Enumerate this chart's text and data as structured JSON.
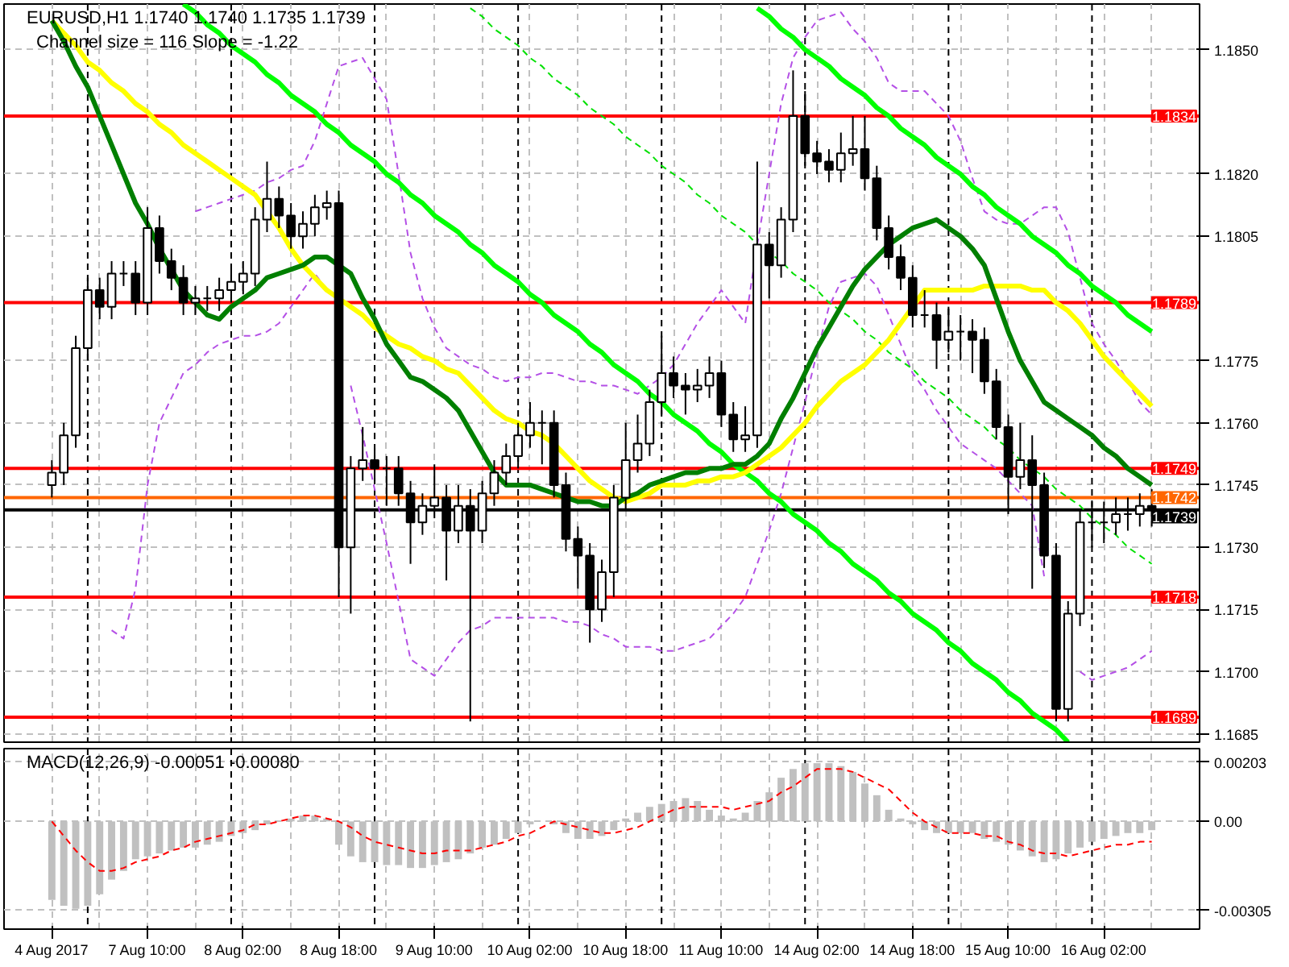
{
  "chart_data": [
    {
      "type": "candlestick",
      "title": "EURUSD,H1  1.1740 1.1740 1.1735 1.1739",
      "subtitle": "Channel size = 116 Slope = -1.22",
      "categories": [
        null,
        null,
        null,
        null,
        null,
        null,
        null,
        null,
        null,
        null,
        null,
        null,
        null,
        null,
        null,
        null,
        null,
        null,
        null,
        null,
        null,
        null,
        null,
        null,
        null,
        null,
        null,
        null,
        null,
        null,
        null,
        null,
        null,
        null,
        null,
        null,
        null,
        null,
        null,
        null,
        null,
        null,
        null,
        null,
        null,
        null,
        null,
        null,
        null,
        null,
        null,
        null,
        null,
        null,
        null,
        null,
        null,
        null,
        null,
        null,
        null,
        null,
        null,
        null,
        null,
        null,
        null,
        null,
        null,
        null,
        null,
        null,
        null,
        null,
        null,
        null,
        null,
        null,
        null,
        null,
        null,
        null,
        null,
        null,
        null,
        null,
        null,
        null,
        null,
        null,
        null,
        null,
        null
      ],
      "ohlc": [
        [
          1.1745,
          1.1751,
          1.1742,
          1.1748
        ],
        [
          1.1748,
          1.176,
          1.1745,
          1.1757
        ],
        [
          1.1757,
          1.1781,
          1.1754,
          1.1778
        ],
        [
          1.1778,
          1.1795,
          1.1775,
          1.1792
        ],
        [
          1.1792,
          1.1795,
          1.1785,
          1.1788
        ],
        [
          1.1788,
          1.1799,
          1.1785,
          1.1796
        ],
        [
          1.1796,
          1.1799,
          1.1793,
          1.1796
        ],
        [
          1.1796,
          1.1799,
          1.1786,
          1.1789
        ],
        [
          1.1789,
          1.1812,
          1.1786,
          1.1807
        ],
        [
          1.1807,
          1.181,
          1.1796,
          1.1799
        ],
        [
          1.1799,
          1.1802,
          1.1792,
          1.1795
        ],
        [
          1.1795,
          1.1798,
          1.1786,
          1.1789
        ],
        [
          1.1789,
          1.1793,
          1.1786,
          1.179
        ],
        [
          1.179,
          1.1793,
          1.1787,
          1.179
        ],
        [
          1.179,
          1.1795,
          1.1787,
          1.1792
        ],
        [
          1.1792,
          1.1797,
          1.1789,
          1.1794
        ],
        [
          1.1794,
          1.1799,
          1.1791,
          1.1796
        ],
        [
          1.1796,
          1.1812,
          1.1793,
          1.1809
        ],
        [
          1.1809,
          1.1823,
          1.1806,
          1.1814
        ],
        [
          1.1814,
          1.1817,
          1.1807,
          1.181
        ],
        [
          1.181,
          1.1813,
          1.1802,
          1.1805
        ],
        [
          1.1805,
          1.1811,
          1.1802,
          1.1808
        ],
        [
          1.1808,
          1.1815,
          1.1805,
          1.1812
        ],
        [
          1.1812,
          1.1816,
          1.1809,
          1.1813
        ],
        [
          1.1813,
          1.1816,
          1.1718,
          1.173
        ],
        [
          1.173,
          1.1752,
          1.1714,
          1.1749
        ],
        [
          1.1749,
          1.1759,
          1.1746,
          1.1751
        ],
        [
          1.1751,
          1.1754,
          1.1746,
          1.1749
        ],
        [
          1.1749,
          1.1752,
          1.174,
          1.1749
        ],
        [
          1.1749,
          1.1752,
          1.174,
          1.1743
        ],
        [
          1.1743,
          1.1746,
          1.1726,
          1.1736
        ],
        [
          1.1736,
          1.1743,
          1.1733,
          1.174
        ],
        [
          1.174,
          1.175,
          1.1737,
          1.1742
        ],
        [
          1.1742,
          1.1745,
          1.1722,
          1.1734
        ],
        [
          1.1734,
          1.1745,
          1.1731,
          1.174
        ],
        [
          1.174,
          1.1744,
          1.1688,
          1.1734
        ],
        [
          1.1734,
          1.1746,
          1.1731,
          1.1743
        ],
        [
          1.1743,
          1.1751,
          1.174,
          1.1748
        ],
        [
          1.1748,
          1.1755,
          1.1745,
          1.1752
        ],
        [
          1.1752,
          1.176,
          1.1749,
          1.1757
        ],
        [
          1.1757,
          1.1765,
          1.1754,
          1.176
        ],
        [
          1.176,
          1.1763,
          1.175,
          1.176
        ],
        [
          1.176,
          1.1763,
          1.1742,
          1.1745
        ],
        [
          1.1745,
          1.1748,
          1.1729,
          1.1732
        ],
        [
          1.1732,
          1.1735,
          1.172,
          1.1728
        ],
        [
          1.1728,
          1.1731,
          1.1707,
          1.1715
        ],
        [
          1.1715,
          1.1727,
          1.1712,
          1.1724
        ],
        [
          1.1724,
          1.1745,
          1.1718,
          1.1742
        ],
        [
          1.1742,
          1.176,
          1.1739,
          1.1751
        ],
        [
          1.1751,
          1.1762,
          1.1748,
          1.1755
        ],
        [
          1.1755,
          1.1768,
          1.1752,
          1.1765
        ],
        [
          1.1765,
          1.1781,
          1.1762,
          1.1772
        ],
        [
          1.1772,
          1.1776,
          1.1766,
          1.1769
        ],
        [
          1.1769,
          1.1772,
          1.1762,
          1.1768
        ],
        [
          1.1768,
          1.1773,
          1.1765,
          1.1769
        ],
        [
          1.1769,
          1.1776,
          1.1766,
          1.1772
        ],
        [
          1.1772,
          1.1775,
          1.1759,
          1.1762
        ],
        [
          1.1762,
          1.1765,
          1.1753,
          1.1756
        ],
        [
          1.1756,
          1.1764,
          1.1753,
          1.1757
        ],
        [
          1.1757,
          1.1823,
          1.1754,
          1.1803
        ],
        [
          1.1803,
          1.1806,
          1.179,
          1.1798
        ],
        [
          1.1798,
          1.1812,
          1.1795,
          1.1809
        ],
        [
          1.1809,
          1.1845,
          1.1806,
          1.1834
        ],
        [
          1.1834,
          1.184,
          1.1822,
          1.1825
        ],
        [
          1.1825,
          1.1828,
          1.182,
          1.1823
        ],
        [
          1.1823,
          1.1826,
          1.1818,
          1.1821
        ],
        [
          1.1821,
          1.183,
          1.1818,
          1.1825
        ],
        [
          1.1825,
          1.1834,
          1.1822,
          1.1826
        ],
        [
          1.1826,
          1.1834,
          1.1816,
          1.1819
        ],
        [
          1.1819,
          1.1822,
          1.1804,
          1.1807
        ],
        [
          1.1807,
          1.181,
          1.1797,
          1.18
        ],
        [
          1.18,
          1.1803,
          1.1792,
          1.1795
        ],
        [
          1.1795,
          1.1798,
          1.1783,
          1.1786
        ],
        [
          1.1786,
          1.1792,
          1.1783,
          1.1786
        ],
        [
          1.1786,
          1.1789,
          1.1773,
          1.178
        ],
        [
          1.178,
          1.1788,
          1.1777,
          1.1782
        ],
        [
          1.1782,
          1.1786,
          1.1775,
          1.1782
        ],
        [
          1.1782,
          1.1785,
          1.1772,
          1.178
        ],
        [
          1.178,
          1.1783,
          1.1767,
          1.177
        ],
        [
          1.177,
          1.1773,
          1.1756,
          1.1759
        ],
        [
          1.1759,
          1.1762,
          1.1738,
          1.1747
        ],
        [
          1.1747,
          1.176,
          1.1744,
          1.1751
        ],
        [
          1.1751,
          1.1757,
          1.172,
          1.1745
        ],
        [
          1.1745,
          1.1748,
          1.1725,
          1.1728
        ],
        [
          1.1728,
          1.1731,
          1.1688,
          1.1691
        ],
        [
          1.1691,
          1.1717,
          1.1688,
          1.1714
        ],
        [
          1.1714,
          1.1739,
          1.1711,
          1.1736
        ],
        [
          1.1736,
          1.1741,
          1.173,
          1.1736
        ],
        [
          1.1736,
          1.1741,
          1.1731,
          1.1736
        ],
        [
          1.1736,
          1.1742,
          1.1733,
          1.1738
        ],
        [
          1.1738,
          1.1742,
          1.1734,
          1.1738
        ],
        [
          1.1738,
          1.1743,
          1.1735,
          1.174
        ],
        [
          1.174,
          1.1744,
          1.1735,
          1.1739
        ]
      ],
      "series": [
        {
          "type": "line",
          "color": "#b450e6",
          "line_style": "dashed",
          "values": [
            null,
            null,
            null,
            null,
            null,
            null,
            null,
            null,
            null,
            null,
            null,
            null,
            1.1811,
            1.1812,
            1.1813,
            1.1814,
            1.1815,
            1.1816,
            1.1818,
            1.1819,
            1.1821,
            1.1822,
            1.1828,
            1.1837,
            1.1846,
            1.1847,
            1.1848,
            1.1843,
            1.1838,
            1.182,
            1.1801,
            1.179,
            1.1783,
            1.1778,
            1.1776,
            1.1774,
            1.1773,
            1.1771,
            1.177,
            1.1771,
            1.1771,
            1.1772,
            1.1772,
            1.1771,
            1.177,
            1.177,
            1.1769,
            1.1769,
            1.1768,
            1.1767,
            1.1769,
            1.1771,
            1.1774,
            1.1779,
            1.1784,
            1.1788,
            1.1792,
            1.1788,
            1.1784,
            1.1803,
            1.182,
            1.1837,
            1.1848,
            1.1853,
            1.1857,
            1.1858,
            1.1859,
            1.1855,
            1.1852,
            1.1848,
            1.1842,
            1.184,
            1.184,
            1.184,
            1.1837,
            1.1834,
            1.1828,
            1.1819,
            1.1811,
            1.1809,
            1.1808,
            1.1808,
            1.181,
            1.1812,
            1.1812,
            1.1806,
            1.1795,
            1.1784,
            1.1779,
            1.1775,
            1.177,
            1.1765,
            1.1762
          ]
        },
        {
          "type": "line",
          "color": "#b450e6",
          "line_style": "dashed",
          "values": [
            null,
            null,
            null,
            null,
            null,
            1.171,
            1.1708,
            1.172,
            1.1745,
            1.176,
            1.1766,
            1.1772,
            1.1774,
            1.1777,
            1.1779,
            1.178,
            1.1781,
            1.1781,
            1.1782,
            1.1784,
            1.1788,
            1.1792,
            1.1796,
            1.1792,
            null,
            1.1769,
            1.1757,
            1.1744,
            1.1731,
            1.1717,
            1.1703,
            1.1701,
            1.1699,
            1.1703,
            1.1707,
            1.171,
            1.1711,
            1.1713,
            1.1713,
            1.1713,
            1.1713,
            1.1713,
            1.1713,
            1.1712,
            1.1712,
            1.1711,
            1.1709,
            1.1708,
            1.1706,
            1.1706,
            1.1706,
            1.1705,
            1.1705,
            1.1706,
            1.1707,
            1.1708,
            1.1711,
            1.1714,
            1.1718,
            1.1726,
            1.1734,
            1.1743,
            1.1754,
            1.1765,
            1.1777,
            1.1788,
            1.1794,
            1.1795,
            1.1796,
            1.1793,
            1.1786,
            1.1779,
            1.1772,
            1.1768,
            1.1763,
            1.1759,
            1.1755,
            1.1753,
            1.1751,
            1.1749,
            1.1746,
            1.1743,
            1.174,
            1.1723,
            null,
            null,
            1.17,
            1.1698,
            1.1699,
            1.17,
            1.1701,
            1.1703,
            1.1705
          ]
        },
        {
          "type": "line",
          "color": "#00ff00",
          "values": [
            null,
            null,
            null,
            null,
            null,
            null,
            null,
            null,
            null,
            null,
            null,
            1.1861,
            1.1859,
            1.1856,
            1.1854,
            1.1851,
            1.1849,
            1.1847,
            1.1844,
            1.1842,
            1.1839,
            1.1837,
            1.1835,
            1.1832,
            1.183,
            1.1827,
            1.1825,
            1.1823,
            1.182,
            1.1818,
            1.1815,
            1.1813,
            1.181,
            1.1808,
            1.1806,
            1.1803,
            1.1801,
            1.1798,
            1.1796,
            1.1794,
            1.1791,
            1.1789,
            1.1786,
            1.1784,
            1.1782,
            1.1779,
            1.1777,
            1.1774,
            1.1772,
            1.177,
            1.1767,
            1.1765,
            1.1762,
            1.176,
            1.1758,
            1.1755,
            1.1753,
            1.175,
            1.1748,
            1.1746,
            1.1743,
            1.1741,
            1.1738,
            1.1736,
            1.1734,
            1.1731,
            1.1729,
            1.1726,
            1.1724,
            1.1722,
            1.1719,
            1.1717,
            1.1714,
            1.1712,
            1.171,
            1.1707,
            1.1705,
            1.1702,
            1.17,
            1.1698,
            1.1695,
            1.1693,
            1.169,
            1.1688,
            1.1686,
            1.1683,
            null,
            null,
            null,
            null,
            null,
            null,
            null
          ]
        },
        {
          "type": "line",
          "color": "#00ff00",
          "values": [
            null,
            null,
            null,
            null,
            null,
            null,
            null,
            null,
            null,
            null,
            null,
            null,
            null,
            null,
            null,
            null,
            null,
            null,
            null,
            null,
            null,
            null,
            null,
            null,
            null,
            null,
            null,
            null,
            null,
            null,
            null,
            null,
            null,
            null,
            null,
            null,
            null,
            null,
            null,
            null,
            null,
            null,
            null,
            null,
            null,
            null,
            null,
            null,
            null,
            null,
            null,
            null,
            null,
            null,
            null,
            null,
            null,
            null,
            null,
            1.186,
            1.1858,
            1.1855,
            1.1853,
            1.185,
            1.1848,
            1.1846,
            1.1843,
            1.1841,
            1.1839,
            1.1836,
            1.1834,
            1.1831,
            1.1829,
            1.1827,
            1.1824,
            1.1822,
            1.182,
            1.1817,
            1.1815,
            1.1812,
            1.181,
            1.1808,
            1.1805,
            1.1803,
            1.1801,
            1.1798,
            1.1796,
            1.1793,
            1.1791,
            1.1789,
            1.1786,
            1.1784,
            1.1782
          ]
        },
        {
          "type": "line",
          "color": "#00e000",
          "line_style": "dashed",
          "values": [
            null,
            null,
            null,
            null,
            null,
            null,
            null,
            null,
            null,
            null,
            null,
            null,
            null,
            null,
            null,
            null,
            null,
            null,
            null,
            null,
            null,
            null,
            null,
            null,
            null,
            null,
            null,
            null,
            null,
            null,
            null,
            null,
            null,
            null,
            null,
            1.186,
            1.1858,
            1.1855,
            1.1853,
            1.1851,
            1.1848,
            1.1846,
            1.1843,
            1.1841,
            1.1839,
            1.1836,
            1.1834,
            1.1832,
            1.1829,
            1.1827,
            1.1825,
            1.1822,
            1.182,
            1.1818,
            1.1815,
            1.1813,
            1.181,
            1.1808,
            1.1806,
            1.1803,
            1.1801,
            1.1799,
            1.1796,
            1.1794,
            1.1792,
            1.1789,
            1.1787,
            1.1785,
            1.1782,
            1.178,
            1.1777,
            1.1775,
            1.1773,
            1.177,
            1.1768,
            1.1766,
            1.1763,
            1.1761,
            1.1759,
            1.1756,
            1.1754,
            1.1751,
            1.1749,
            1.1747,
            1.1744,
            1.1742,
            1.174,
            1.1737,
            1.1735,
            1.1733,
            1.173,
            1.1728,
            1.1726
          ]
        },
        {
          "type": "line",
          "color": "#ffff00",
          "values": [
            1.1857,
            1.1854,
            1.1851,
            1.1847,
            1.1845,
            1.1842,
            1.184,
            1.1837,
            1.1835,
            1.1832,
            1.183,
            1.1827,
            1.1825,
            1.1823,
            1.1821,
            1.1819,
            1.1817,
            1.1815,
            1.1811,
            1.1807,
            1.1802,
            1.1798,
            1.1795,
            1.1792,
            1.179,
            1.1788,
            1.1786,
            1.1783,
            1.1781,
            1.1779,
            1.1778,
            1.1776,
            1.1775,
            1.1773,
            1.1772,
            1.1769,
            1.1766,
            1.1763,
            1.1761,
            1.176,
            1.1758,
            1.1757,
            1.1755,
            1.1752,
            1.1749,
            1.1746,
            1.1744,
            1.1742,
            1.1741,
            1.1742,
            1.1743,
            1.1745,
            1.1745,
            1.1745,
            1.1746,
            1.1746,
            1.1747,
            1.1747,
            1.1748,
            1.175,
            1.1752,
            1.1754,
            1.1757,
            1.176,
            1.1764,
            1.1767,
            1.177,
            1.1772,
            1.1774,
            1.1777,
            1.178,
            1.1784,
            1.1788,
            1.1792,
            1.1792,
            1.1792,
            1.1792,
            1.1792,
            1.1793,
            1.1793,
            1.1793,
            1.1793,
            1.1792,
            1.1792,
            1.1789,
            1.1787,
            1.1784,
            1.178,
            1.1776,
            1.1773,
            1.177,
            1.1767,
            1.1764
          ]
        },
        {
          "type": "line",
          "color": "#007f00",
          "values": [
            1.1857,
            1.1852,
            1.1846,
            1.1841,
            1.1834,
            1.1827,
            1.182,
            1.1813,
            1.1808,
            1.1802,
            1.1797,
            1.1792,
            1.1789,
            1.1786,
            1.1785,
            1.1788,
            1.179,
            1.1792,
            1.1795,
            1.1796,
            1.1797,
            1.1798,
            1.18,
            1.18,
            1.1798,
            1.1796,
            1.179,
            1.1785,
            1.1779,
            1.1775,
            1.1771,
            1.177,
            1.1768,
            1.1766,
            1.1763,
            1.1758,
            1.1753,
            1.1748,
            1.1745,
            1.1745,
            1.1745,
            1.1744,
            1.1743,
            1.1742,
            1.1741,
            1.1741,
            1.174,
            1.174,
            1.1742,
            1.1743,
            1.1745,
            1.1746,
            1.1747,
            1.1748,
            1.1748,
            1.1749,
            1.1749,
            1.175,
            1.175,
            1.1752,
            1.1755,
            1.1761,
            1.1766,
            1.1772,
            1.1778,
            1.1783,
            1.1788,
            1.1793,
            1.1797,
            1.18,
            1.1803,
            1.1805,
            1.1807,
            1.1808,
            1.1809,
            1.1807,
            1.1805,
            1.1802,
            1.1798,
            1.179,
            1.1782,
            1.1775,
            1.177,
            1.1765,
            1.1763,
            1.1761,
            1.1759,
            1.1757,
            1.1754,
            1.1752,
            1.1749,
            1.1747,
            1.1745
          ]
        }
      ],
      "ylim": [
        1.1683,
        1.1861
      ],
      "yticks": [
        {
          "value": 1.185,
          "label": "1.1850"
        },
        {
          "value": 1.182,
          "label": "1.1820"
        },
        1.1805,
        1.1775,
        {
          "value": 1.176,
          "label": "1.1760"
        },
        1.1745,
        {
          "value": 1.173,
          "label": "1.1730"
        },
        1.1715,
        {
          "value": 1.17,
          "label": "1.1700"
        },
        1.1685
      ],
      "tick_labels": "y",
      "grid": true,
      "ref_lines": [
        {
          "axis": "y",
          "value": 1.1834,
          "label": "1.1834",
          "color": "#ff0000"
        },
        {
          "axis": "y",
          "value": 1.1789,
          "label": "1.1789",
          "color": "#ff0000"
        },
        {
          "axis": "y",
          "value": 1.1749,
          "label": "1.1749",
          "color": "#ff0000"
        },
        {
          "axis": "y",
          "value": 1.1718,
          "label": "1.1718",
          "color": "#ff0000"
        },
        {
          "axis": "y",
          "value": 1.1689,
          "label": "1.1689",
          "color": "#ff0000"
        },
        {
          "axis": "y",
          "value": 1.1742,
          "label": "1.1742",
          "color": "#ff6600"
        },
        {
          "axis": "y",
          "value": 1.1739,
          "label": "1.1739",
          "color": "#000000"
        }
      ]
    },
    {
      "type": "bar",
      "title": "MACD(12,26,9) -0.00051 -0.00080",
      "categories": [
        "4 Aug 2017",
        null,
        null,
        null,
        null,
        null,
        null,
        null,
        "7 Aug 10:00",
        null,
        null,
        null,
        null,
        null,
        null,
        null,
        "8 Aug 02:00",
        null,
        null,
        null,
        null,
        null,
        null,
        null,
        "8 Aug 18:00",
        null,
        null,
        null,
        null,
        null,
        null,
        null,
        "9 Aug 10:00",
        null,
        null,
        null,
        null,
        null,
        null,
        null,
        "10 Aug 02:00",
        null,
        null,
        null,
        null,
        null,
        null,
        null,
        "10 Aug 18:00",
        null,
        null,
        null,
        null,
        null,
        null,
        null,
        "11 Aug 10:00",
        null,
        null,
        null,
        null,
        null,
        null,
        null,
        "14 Aug 02:00",
        null,
        null,
        null,
        null,
        null,
        null,
        null,
        "14 Aug 18:00",
        null,
        null,
        null,
        null,
        null,
        null,
        null,
        "15 Aug 10:00",
        null,
        null,
        null,
        null,
        null,
        null,
        null,
        "16 Aug 02:00",
        null,
        null,
        null,
        null
      ],
      "series": [
        {
          "color": "#c0c0c0",
          "values": [
            -0.0027,
            -0.0029,
            -0.003,
            -0.0029,
            -0.0025,
            -0.002,
            -0.0017,
            -0.0013,
            -0.0012,
            -0.0011,
            -0.001,
            -0.0009,
            -0.0009,
            -0.0008,
            -0.0007,
            -0.0005,
            -0.0004,
            -0.0003,
            -0.0001,
            0.0,
            0.0001,
            0.0002,
            0.0002,
            0.0001,
            -0.0008,
            -0.0012,
            -0.0014,
            -0.0014,
            -0.0015,
            -0.0015,
            -0.0016,
            -0.0016,
            -0.0015,
            -0.0014,
            -0.0013,
            -0.0011,
            -0.0009,
            -0.0008,
            -0.0006,
            -0.0004,
            -0.0001,
            0.0,
            -0.0001,
            -0.0004,
            -0.0006,
            -0.0006,
            -0.0005,
            -0.0003,
            0.0001,
            0.0003,
            0.0005,
            0.0006,
            0.0007,
            0.0008,
            0.0007,
            0.0004,
            0.0002,
            0.0001,
            0.0003,
            0.0007,
            0.001,
            0.0015,
            0.0018,
            0.002,
            0.002,
            0.002,
            0.0019,
            0.0017,
            0.0013,
            0.0009,
            0.0004,
            0.0001,
            -0.0001,
            -0.0003,
            -0.0004,
            -0.0004,
            -0.0004,
            -0.0004,
            -0.0006,
            -0.0007,
            -0.0008,
            -0.001,
            -0.0012,
            -0.0014,
            -0.0013,
            -0.0011,
            -0.0009,
            -0.0007,
            -0.0006,
            -0.0005,
            -0.0004,
            -0.0004,
            -0.0003
          ]
        },
        {
          "type": "line",
          "color": "#ff0000",
          "line_style": "dashed",
          "values": [
            0.0,
            -0.0005,
            -0.001,
            -0.0014,
            -0.0017,
            -0.0017,
            -0.0016,
            -0.0014,
            -0.0013,
            -0.0012,
            -0.001,
            -0.0009,
            -0.0007,
            -0.0006,
            -0.0005,
            -0.0004,
            -0.0003,
            -0.0001,
            -0.0001,
            0.0,
            0.0001,
            0.0002,
            0.0002,
            0.0001,
            0.0,
            -0.0002,
            -0.0005,
            -0.0007,
            -0.0008,
            -0.0009,
            -0.001,
            -0.0011,
            -0.0011,
            -0.001,
            -0.001,
            -0.001,
            -0.0009,
            -0.0008,
            -0.0007,
            -0.0005,
            -0.0004,
            -0.0002,
            0.0,
            -0.0001,
            -0.0002,
            -0.0003,
            -0.0004,
            -0.0004,
            -0.0003,
            -0.0002,
            0.0,
            0.0002,
            0.0004,
            0.0005,
            0.0005,
            0.0005,
            0.0005,
            0.0004,
            0.0005,
            0.0006,
            0.0007,
            0.001,
            0.0012,
            0.0015,
            0.0018,
            0.0018,
            0.0018,
            0.0017,
            0.0015,
            0.0013,
            0.0011,
            0.0007,
            0.0003,
            0.0,
            -0.0002,
            -0.0004,
            -0.0004,
            -0.0004,
            -0.0005,
            -0.0005,
            -0.0007,
            -0.0008,
            -0.001,
            -0.0011,
            -0.0011,
            -0.0012,
            -0.0011,
            -0.001,
            -0.0009,
            -0.0008,
            -0.0008,
            -0.0007,
            -0.0007
          ]
        }
      ],
      "ylim": [
        -0.0037,
        0.0025
      ],
      "yticks": [
        0.00203,
        {
          "value": 0,
          "label": "0.00"
        },
        -0.00305
      ],
      "grid": true
    }
  ]
}
